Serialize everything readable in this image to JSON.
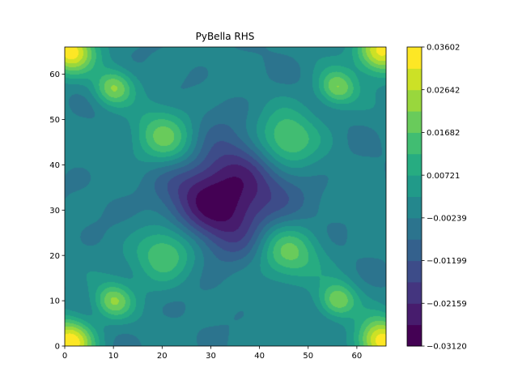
{
  "chart_data": {
    "type": "heatmap",
    "style": "filled-contour",
    "title": "PyBella RHS",
    "xlabel": "",
    "ylabel": "",
    "xlim": [
      0,
      66
    ],
    "ylim": [
      0,
      66
    ],
    "x_ticks": [
      0,
      10,
      20,
      30,
      40,
      50,
      60
    ],
    "y_ticks": [
      0,
      10,
      20,
      30,
      40,
      50,
      60
    ],
    "colormap": "viridis",
    "color_range": [
      -0.0312,
      0.03602
    ],
    "colorbar_ticks": [
      {
        "value": 0.03602,
        "label": "0.03602"
      },
      {
        "value": 0.02642,
        "label": "0.02642"
      },
      {
        "value": 0.01682,
        "label": "0.01682"
      },
      {
        "value": 0.00721,
        "label": "0.00721"
      },
      {
        "value": -0.00239,
        "label": "−0.00239"
      },
      {
        "value": -0.01199,
        "label": "−0.01199"
      },
      {
        "value": -0.02159,
        "label": "−0.02159"
      },
      {
        "value": -0.0312,
        "label": "−0.03120"
      }
    ],
    "levels": 14,
    "features": [
      {
        "kind": "minimum",
        "x": 33,
        "y": 33,
        "value": -0.031
      },
      {
        "kind": "maximum",
        "x": 1,
        "y": 1,
        "value": 0.036
      },
      {
        "kind": "maximum",
        "x": 65,
        "y": 1,
        "value": 0.036
      },
      {
        "kind": "maximum",
        "x": 1,
        "y": 65,
        "value": 0.036
      },
      {
        "kind": "maximum",
        "x": 65,
        "y": 65,
        "value": 0.036
      },
      {
        "kind": "maximum",
        "x": 20,
        "y": 46,
        "value": 0.018
      },
      {
        "kind": "maximum",
        "x": 46,
        "y": 46,
        "value": 0.018
      },
      {
        "kind": "maximum",
        "x": 20,
        "y": 20,
        "value": 0.018
      },
      {
        "kind": "maximum",
        "x": 46,
        "y": 20,
        "value": 0.018
      },
      {
        "kind": "maximum",
        "x": 10,
        "y": 57,
        "value": 0.022
      },
      {
        "kind": "maximum",
        "x": 56,
        "y": 57,
        "value": 0.022
      },
      {
        "kind": "maximum",
        "x": 10,
        "y": 10,
        "value": 0.022
      },
      {
        "kind": "maximum",
        "x": 56,
        "y": 10,
        "value": 0.022
      }
    ]
  }
}
